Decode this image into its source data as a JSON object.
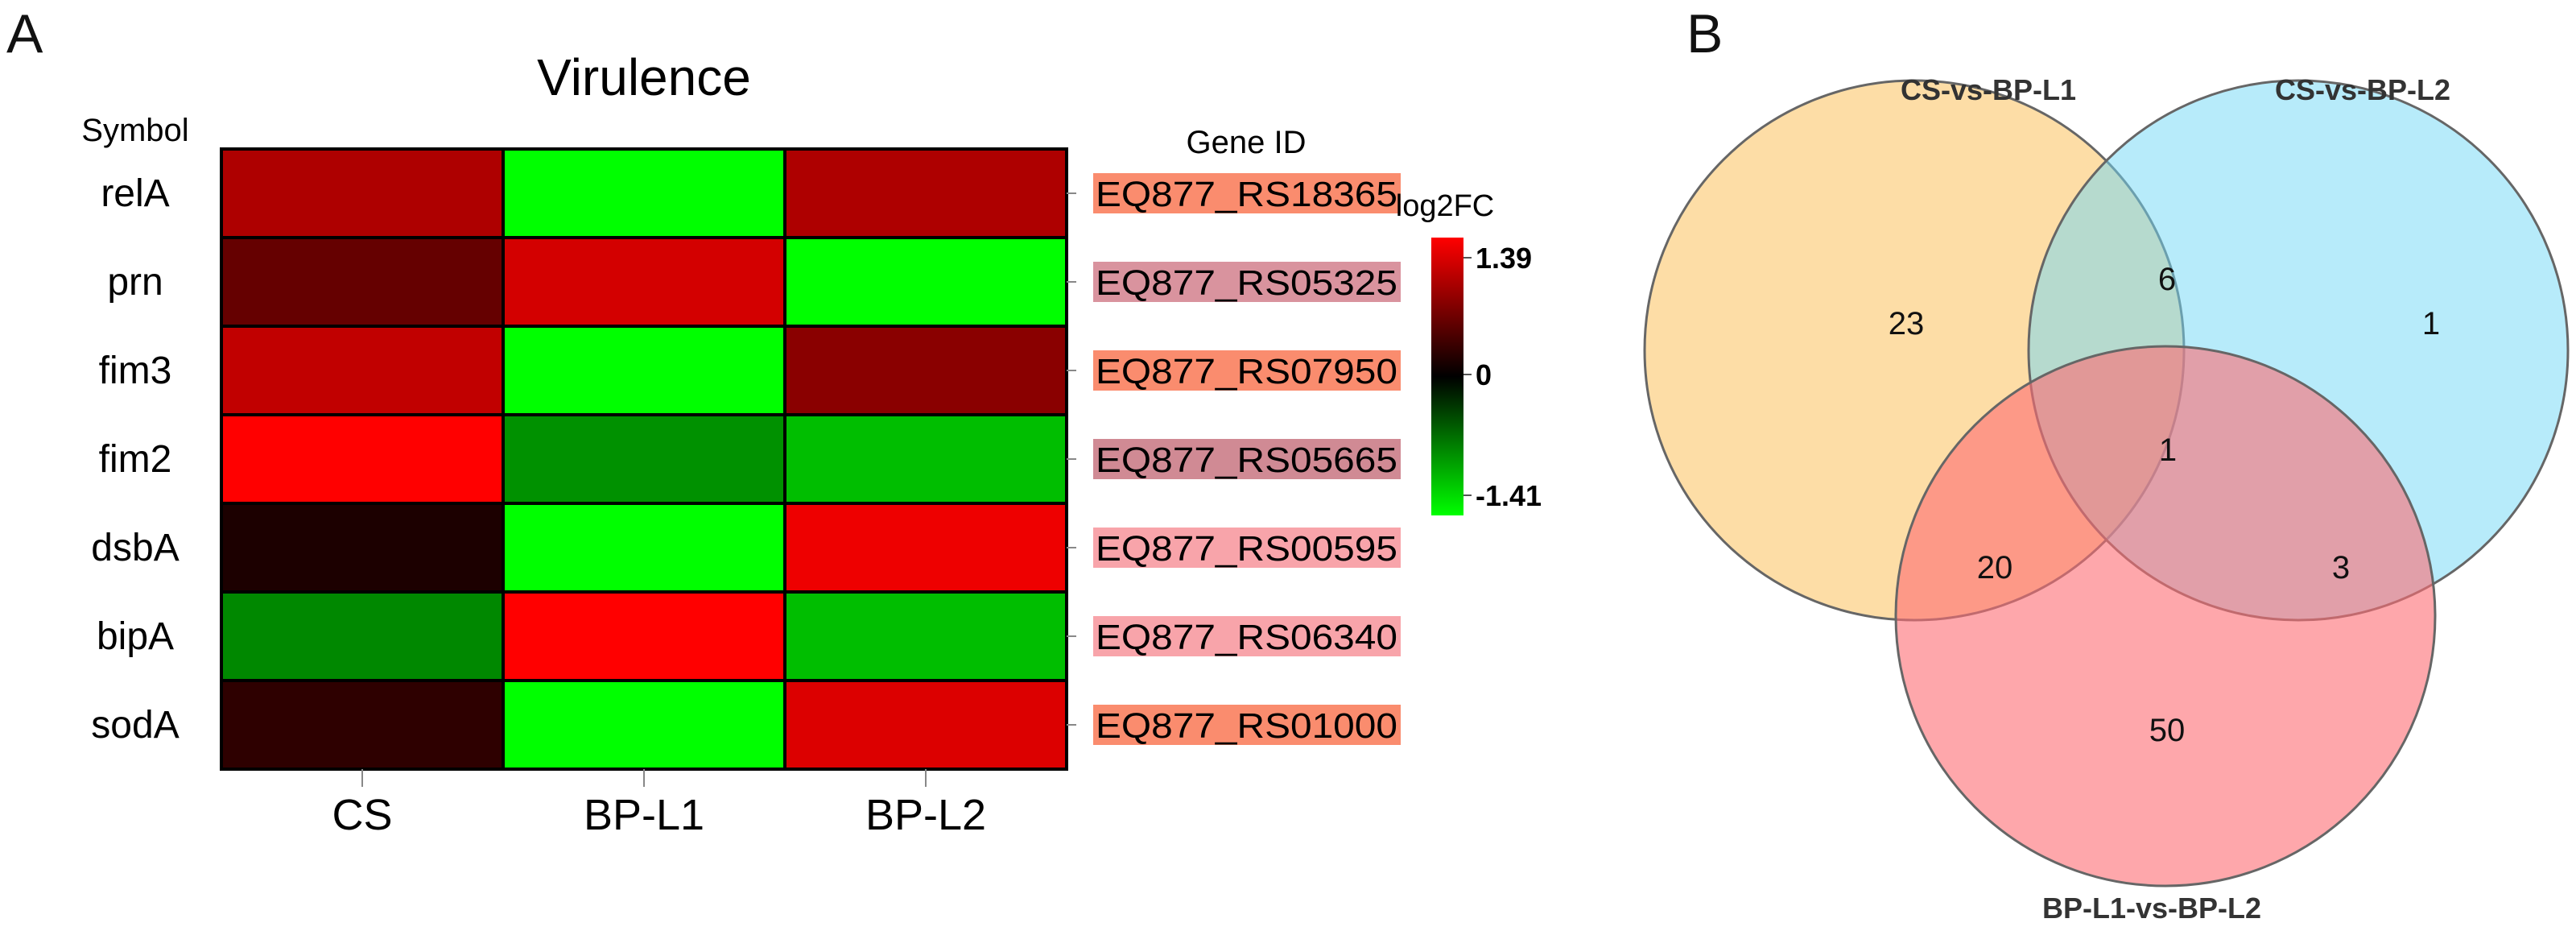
{
  "panel_a": {
    "letter": "A"
  },
  "panel_b": {
    "letter": "B"
  },
  "chart_data": [
    {
      "type": "heatmap",
      "title": "Virulence",
      "row_header": "Symbol",
      "id_header": "Gene ID",
      "columns": [
        "CS",
        "BP-L1",
        "BP-L2"
      ],
      "rows": [
        {
          "symbol": "relA",
          "gene_id": "EQ877_RS18365",
          "id_color": "#fa8c6e",
          "values": [
            0.95,
            -1.41,
            0.95
          ]
        },
        {
          "symbol": "prn",
          "gene_id": "EQ877_RS05325",
          "id_color": "#d9939e",
          "values": [
            0.55,
            1.15,
            -1.41
          ]
        },
        {
          "symbol": "fim3",
          "gene_id": "EQ877_RS07950",
          "id_color": "#fa8c6e",
          "values": [
            1.05,
            -1.41,
            0.75
          ]
        },
        {
          "symbol": "fim2",
          "gene_id": "EQ877_RS05665",
          "id_color": "#d08a94",
          "values": [
            1.39,
            -0.8,
            -1.05
          ]
        },
        {
          "symbol": "dsbA",
          "gene_id": "EQ877_RS00595",
          "id_color": "#f8a4aa",
          "values": [
            0.15,
            -1.41,
            1.3
          ]
        },
        {
          "symbol": "bipA",
          "gene_id": "EQ877_RS06340",
          "id_color": "#f8a4aa",
          "values": [
            -0.75,
            1.39,
            -1.05
          ]
        },
        {
          "symbol": "sodA",
          "gene_id": "EQ877_RS01000",
          "id_color": "#fa8c6e",
          "values": [
            0.25,
            -1.41,
            1.2
          ]
        }
      ],
      "legend": {
        "title": "log2FC",
        "max": 1.39,
        "mid": 0,
        "min": -1.41,
        "max_label": "1.39",
        "mid_label": "0",
        "min_label": "-1.41",
        "colors": [
          "#ff0000",
          "#000000",
          "#00ff00"
        ]
      }
    },
    {
      "type": "venn",
      "sets": [
        {
          "name": "CS-vs-BP-L1",
          "color": "#fbc76a"
        },
        {
          "name": "CS-vs-BP-L2",
          "color": "#6fd8f6"
        },
        {
          "name": "BP-L1-vs-BP-L2",
          "color": "#fe6c73"
        }
      ],
      "regions": [
        {
          "key": "L1_only",
          "sets": [
            "CS-vs-BP-L1"
          ],
          "value": 23
        },
        {
          "key": "L1_L2",
          "sets": [
            "CS-vs-BP-L1",
            "CS-vs-BP-L2"
          ],
          "value": 6
        },
        {
          "key": "L2_only",
          "sets": [
            "CS-vs-BP-L2"
          ],
          "value": 1
        },
        {
          "key": "all",
          "sets": [
            "CS-vs-BP-L1",
            "CS-vs-BP-L2",
            "BP-L1-vs-BP-L2"
          ],
          "value": 1
        },
        {
          "key": "L1_B",
          "sets": [
            "CS-vs-BP-L1",
            "BP-L1-vs-BP-L2"
          ],
          "value": 20
        },
        {
          "key": "L2_B",
          "sets": [
            "CS-vs-BP-L2",
            "BP-L1-vs-BP-L2"
          ],
          "value": 3
        },
        {
          "key": "B_only",
          "sets": [
            "BP-L1-vs-BP-L2"
          ],
          "value": 50
        }
      ]
    }
  ]
}
